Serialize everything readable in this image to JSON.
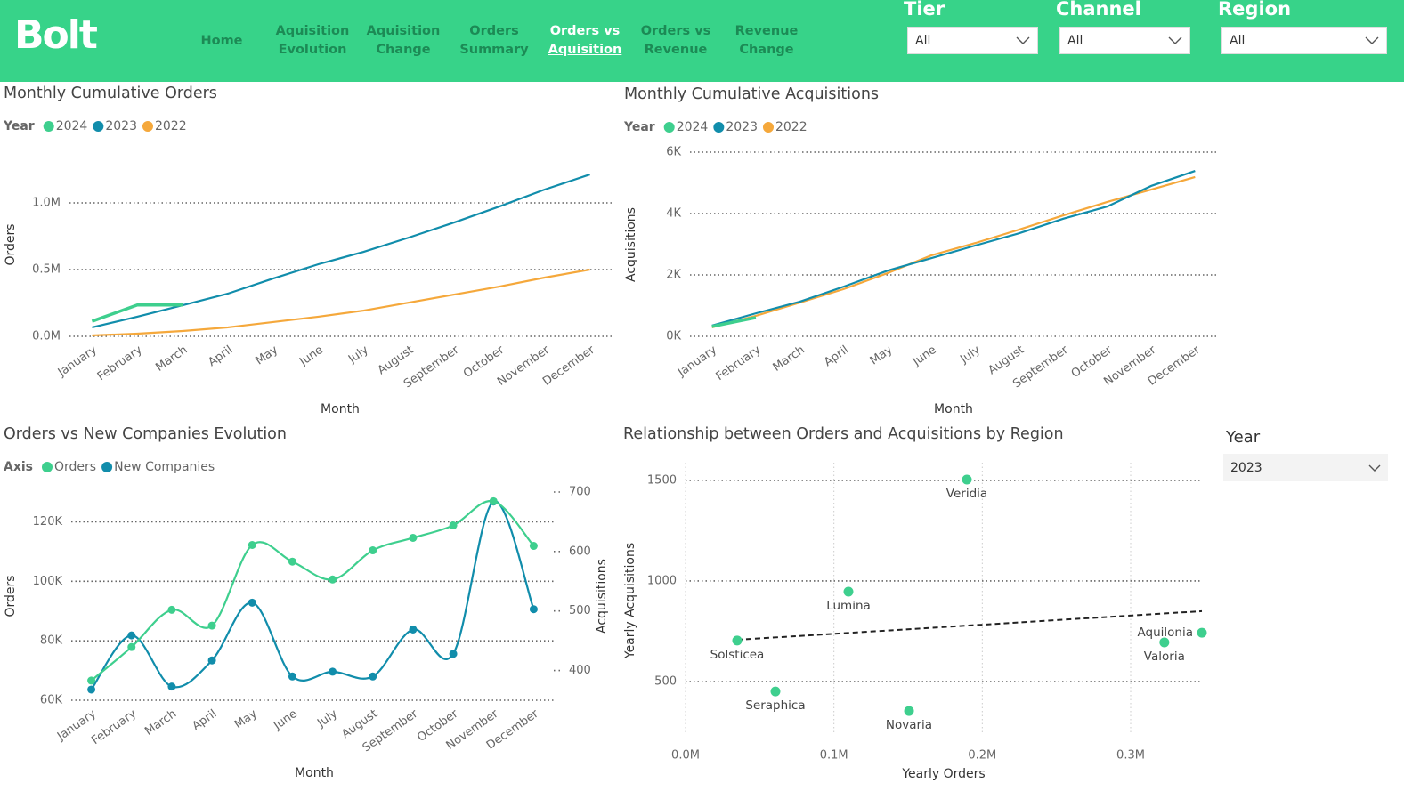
{
  "header": {
    "logo": "Bolt",
    "nav": [
      "Home",
      "Aquisition Evolution",
      "Aquisition Change",
      "Orders Summary",
      "Orders vs Aquisition",
      "Orders vs Revenue",
      "Revenue Change"
    ],
    "active_index": 4,
    "filters": [
      {
        "label": "Tier",
        "value": "All"
      },
      {
        "label": "Channel",
        "value": "All"
      },
      {
        "label": "Region",
        "value": "All"
      }
    ]
  },
  "year_slicer": {
    "label": "Year",
    "value": "2023"
  },
  "chart_data": [
    {
      "type": "line",
      "title": "Monthly Cumulative Orders",
      "legend_title": "Year",
      "x_label": "Month",
      "y_label": "Orders",
      "categories": [
        "January",
        "February",
        "March",
        "April",
        "May",
        "June",
        "July",
        "August",
        "September",
        "October",
        "November",
        "December"
      ],
      "series": [
        {
          "name": "2024",
          "color": "#3ecf8e",
          "values": [
            113000,
            235000,
            235000,
            null,
            null,
            null,
            null,
            null,
            null,
            null,
            null,
            null
          ]
        },
        {
          "name": "2023",
          "color": "#118dab",
          "values": [
            67000,
            147000,
            233000,
            320000,
            433000,
            540000,
            633000,
            740000,
            853000,
            973000,
            1100000,
            1213000
          ]
        },
        {
          "name": "2022",
          "color": "#f5a83b",
          "values": [
            7000,
            20000,
            40000,
            67000,
            107000,
            147000,
            193000,
            253000,
            313000,
            373000,
            440000,
            500000
          ]
        }
      ],
      "ylim": [
        0,
        1400000
      ],
      "yticks": [
        {
          "value": 0,
          "label": "0.0M"
        },
        {
          "value": 500000,
          "label": "0.5M"
        },
        {
          "value": 1000000,
          "label": "1.0M"
        }
      ],
      "grid": true
    },
    {
      "type": "line",
      "title": "Monthly Cumulative Acquisitions",
      "legend_title": "Year",
      "x_label": "Month",
      "y_label": "Acquisitions",
      "categories": [
        "January",
        "February",
        "March",
        "April",
        "May",
        "June",
        "July",
        "August",
        "September",
        "October",
        "November",
        "December"
      ],
      "series": [
        {
          "name": "2024",
          "color": "#3ecf8e",
          "values": [
            320,
            610,
            null,
            null,
            null,
            null,
            null,
            null,
            null,
            null,
            null,
            null
          ]
        },
        {
          "name": "2023",
          "color": "#118dab",
          "values": [
            350,
            750,
            1130,
            1620,
            2140,
            2550,
            2960,
            3360,
            3830,
            4230,
            4900,
            5390
          ]
        },
        {
          "name": "2022",
          "color": "#f5a83b",
          "values": [
            290,
            670,
            1100,
            1540,
            2060,
            2640,
            3040,
            3480,
            3940,
            4380,
            4780,
            5190
          ]
        }
      ],
      "ylim": [
        0,
        6000
      ],
      "yticks": [
        {
          "value": 0,
          "label": "0K"
        },
        {
          "value": 2000,
          "label": "2K"
        },
        {
          "value": 4000,
          "label": "4K"
        },
        {
          "value": 6000,
          "label": "6K"
        }
      ],
      "grid": true
    },
    {
      "type": "line",
      "smooth": true,
      "markers": true,
      "title": "Orders vs New Companies Evolution",
      "legend_title": "Axis",
      "x_label": "Month",
      "y_label": "Orders",
      "y2_label": "Acquisitions",
      "categories": [
        "January",
        "February",
        "March",
        "April",
        "May",
        "June",
        "July",
        "August",
        "September",
        "October",
        "November",
        "December"
      ],
      "series": [
        {
          "name": "Orders",
          "color": "#3ecf8e",
          "axis": "y",
          "values": [
            66600,
            77900,
            90400,
            85100,
            112200,
            106600,
            100600,
            110400,
            114600,
            118800,
            126900,
            111900
          ]
        },
        {
          "name": "New Companies",
          "color": "#118dab",
          "axis": "y2",
          "values": [
            368,
            459,
            373,
            417,
            514,
            390,
            398,
            390,
            469,
            428,
            684,
            503
          ]
        }
      ],
      "ylim": [
        60000,
        130000
      ],
      "yticks": [
        {
          "value": 60000,
          "label": "60K"
        },
        {
          "value": 80000,
          "label": "80K"
        },
        {
          "value": 100000,
          "label": "100K"
        },
        {
          "value": 120000,
          "label": "120K"
        }
      ],
      "y2lim": [
        350,
        700
      ],
      "y2ticks": [
        400,
        500,
        600,
        700
      ],
      "grid": true
    },
    {
      "type": "scatter",
      "title": "Relationship between Orders and Acquisitions by Region",
      "x_label": "Yearly Orders",
      "y_label": "Yearly Acquisitions",
      "color": "#3ecf8e",
      "labels": [
        "Veridia",
        "Lumina",
        "Solsticea",
        "Seraphica",
        "Novaria",
        "Valoria",
        "Aquilonia"
      ],
      "x": [
        189600,
        109800,
        34800,
        60600,
        150600,
        322700,
        348000
      ],
      "values": [
        1504,
        947,
        704,
        451,
        354,
        695,
        743
      ],
      "trend_line": {
        "x": [
          34800,
          348000
        ],
        "values": [
          708,
          850
        ]
      },
      "xlim": [
        0,
        348000
      ],
      "xticks": [
        {
          "value": 0,
          "label": "0.0M"
        },
        {
          "value": 100000,
          "label": "0.1M"
        },
        {
          "value": 200000,
          "label": "0.2M"
        },
        {
          "value": 300000,
          "label": "0.3M"
        }
      ],
      "ylim": [
        173,
        1588
      ],
      "yticks": [
        500,
        1000,
        1500
      ],
      "grid": true
    }
  ]
}
